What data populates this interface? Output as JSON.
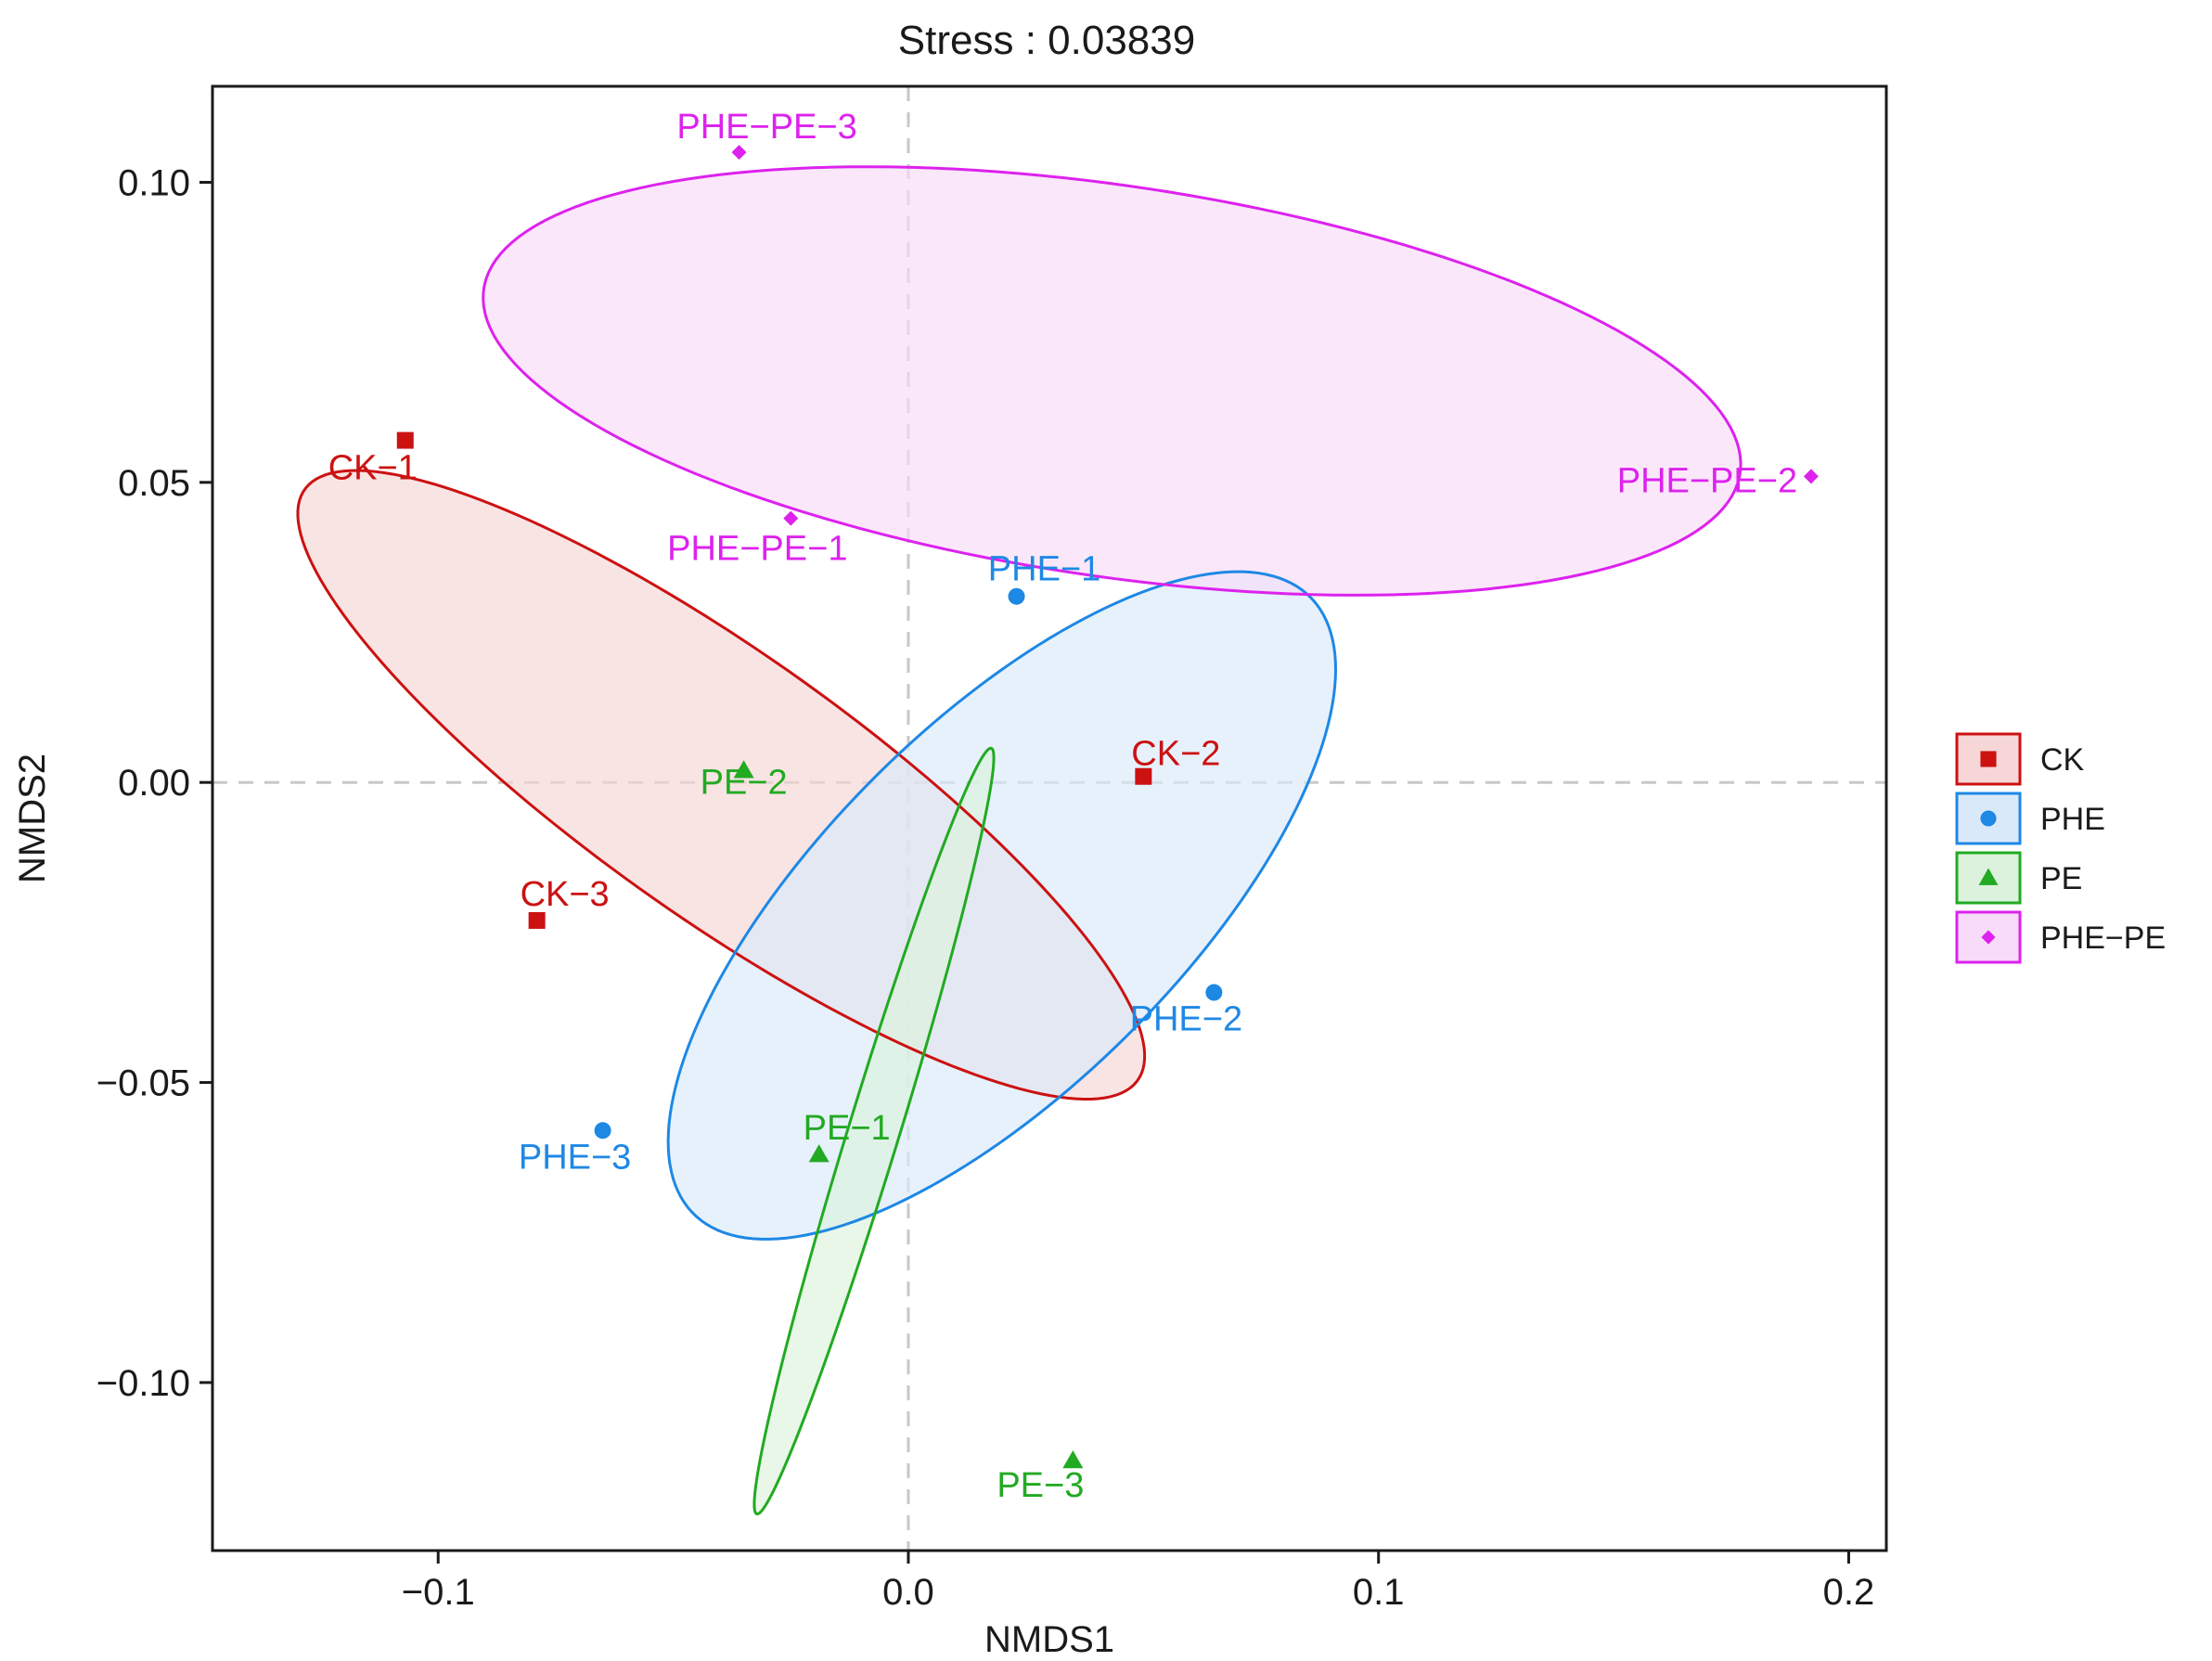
{
  "chart_data": {
    "type": "scatter",
    "title": "Stress : 0.03839",
    "xlabel": "NMDS1",
    "ylabel": "NMDS2",
    "xlim": [
      -0.148,
      0.208
    ],
    "ylim": [
      -0.128,
      0.116
    ],
    "x_ticks": [
      {
        "value": -0.1,
        "label": "−0.1"
      },
      {
        "value": 0.0,
        "label": "0.0"
      },
      {
        "value": 0.1,
        "label": "0.1"
      },
      {
        "value": 0.2,
        "label": "0.2"
      }
    ],
    "y_ticks": [
      {
        "value": 0.1,
        "label": "0.10"
      },
      {
        "value": 0.05,
        "label": "0.05"
      },
      {
        "value": 0.0,
        "label": "0.00"
      },
      {
        "value": -0.05,
        "label": "−0.05"
      },
      {
        "value": -0.1,
        "label": "−0.10"
      }
    ],
    "grid": false,
    "reference_lines": {
      "x": 0,
      "y": 0,
      "style": "dashed",
      "color": "#c8c8c8"
    },
    "legend_position": "right",
    "series": [
      {
        "name": "CK",
        "color": "#cc1111",
        "fill": "#f6d6d6",
        "marker": "square",
        "ellipse": {
          "center": [
            -0.0398,
            -0.0004
          ],
          "rx": 0.1015,
          "ry": 0.0235,
          "angle_deg": -28.3
        },
        "points": [
          {
            "label": "CK−1",
            "x": -0.107,
            "y": 0.057
          },
          {
            "label": "CK−2",
            "x": 0.05,
            "y": 0.001
          },
          {
            "label": "CK−3",
            "x": -0.079,
            "y": -0.023
          }
        ]
      },
      {
        "name": "PHE",
        "color": "#1e88e5",
        "fill": "#d9e9fa",
        "marker": "circle",
        "ellipse": {
          "center": [
            0.0199,
            -0.0205
          ],
          "rx": 0.0838,
          "ry": 0.0333,
          "angle_deg": 35.4
        },
        "points": [
          {
            "label": "PHE−1",
            "x": 0.023,
            "y": 0.031
          },
          {
            "label": "PHE−2",
            "x": 0.065,
            "y": -0.035
          },
          {
            "label": "PHE−3",
            "x": -0.065,
            "y": -0.058
          }
        ]
      },
      {
        "name": "PE",
        "color": "#22aa22",
        "fill": "#dcf2dc",
        "marker": "triangle",
        "ellipse": {
          "center": [
            -0.0073,
            -0.0581
          ],
          "rx": 0.0685,
          "ry": 0.0053,
          "angle_deg": 68.6
        },
        "points": [
          {
            "label": "PE−1",
            "x": -0.019,
            "y": -0.062
          },
          {
            "label": "PE−2",
            "x": -0.035,
            "y": 0.002
          },
          {
            "label": "PE−3",
            "x": 0.035,
            "y": -0.113
          }
        ]
      },
      {
        "name": "PHE−PE",
        "color": "#dd22ee",
        "fill": "#f7dbf8",
        "marker": "diamond",
        "ellipse": {
          "center": [
            0.0433,
            0.0669
          ],
          "rx": 0.1345,
          "ry": 0.0327,
          "angle_deg": -6.3
        },
        "points": [
          {
            "label": "PHE−PE−1",
            "x": -0.025,
            "y": 0.044
          },
          {
            "label": "PHE−PE−2",
            "x": 0.192,
            "y": 0.051
          },
          {
            "label": "PHE−PE−3",
            "x": -0.036,
            "y": 0.105
          }
        ]
      }
    ]
  }
}
